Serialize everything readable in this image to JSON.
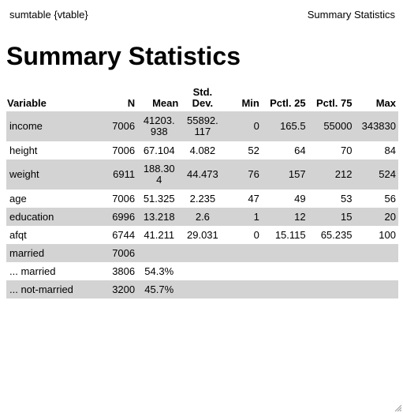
{
  "window": {
    "left_title": "sumtable {vtable}",
    "right_title": "Summary Statistics"
  },
  "heading": "Summary Statistics",
  "table": {
    "headers": [
      "Variable",
      "N",
      "Mean",
      "Std.\nDev.",
      "Min",
      "Pctl. 25",
      "Pctl. 75",
      "Max"
    ],
    "rows": [
      [
        "income",
        "7006",
        "41203.\n938",
        "55892.\n117",
        "0",
        "165.5",
        "55000",
        "343830"
      ],
      [
        "height",
        "7006",
        "67.104",
        "4.082",
        "52",
        "64",
        "70",
        "84"
      ],
      [
        "weight",
        "6911",
        "188.30\n4",
        "44.473",
        "76",
        "157",
        "212",
        "524"
      ],
      [
        "age",
        "7006",
        "51.325",
        "2.235",
        "47",
        "49",
        "53",
        "56"
      ],
      [
        "education",
        "6996",
        "13.218",
        "2.6",
        "1",
        "12",
        "15",
        "20"
      ],
      [
        "afqt",
        "6744",
        "41.211",
        "29.031",
        "0",
        "15.115",
        "65.235",
        "100"
      ],
      [
        "married",
        "7006",
        "",
        "",
        "",
        "",
        "",
        ""
      ],
      [
        "... married",
        "3806",
        "54.3%",
        "",
        "",
        "",
        "",
        ""
      ],
      [
        "... not-married",
        "3200",
        "45.7%",
        "",
        "",
        "",
        "",
        ""
      ]
    ]
  },
  "colors": {
    "shaded_row": "#d3d3d3",
    "background": "#ffffff",
    "text": "#000000"
  },
  "icons": {
    "resize": "resize-grip-icon"
  }
}
